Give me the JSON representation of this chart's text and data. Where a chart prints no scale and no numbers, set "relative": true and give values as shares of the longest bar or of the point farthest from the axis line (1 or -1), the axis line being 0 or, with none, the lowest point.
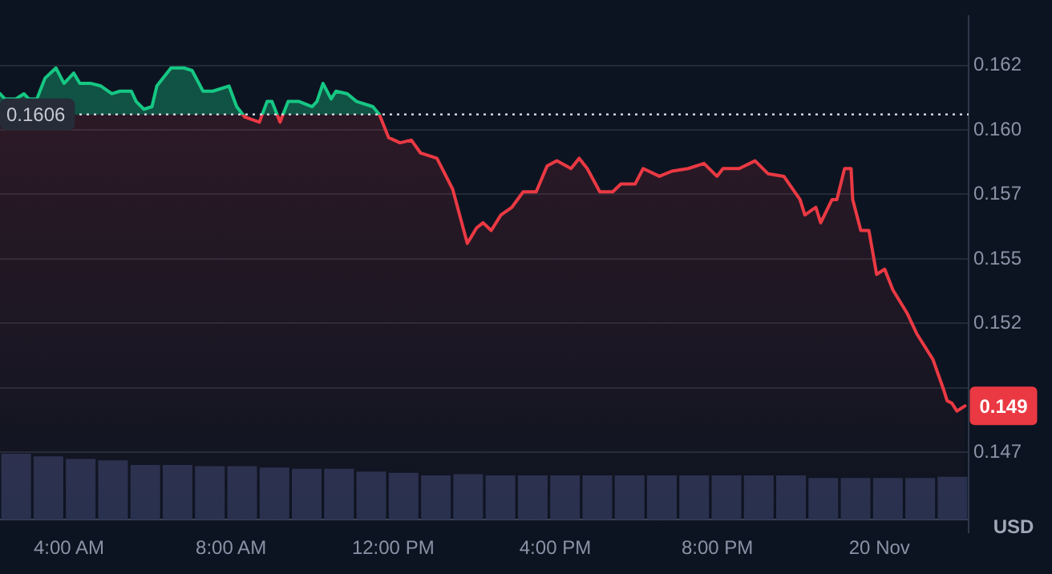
{
  "chart_data": [
    {
      "type": "area",
      "ylabel": "USD",
      "x": [
        2.3,
        2.42,
        2.69,
        2.89,
        3.01,
        3.21,
        3.41,
        3.68,
        3.88,
        4.12,
        4.27,
        4.55,
        4.79,
        5.06,
        5.26,
        5.54,
        5.66,
        5.85,
        6.05,
        6.17,
        6.52,
        6.84,
        7.04,
        7.31,
        7.55,
        7.95,
        8.14,
        8.34,
        8.7,
        8.89,
        9.01,
        9.21,
        9.41,
        9.68,
        10.0,
        10.12,
        10.27,
        10.47,
        10.59,
        10.87,
        11.1,
        11.5,
        11.66,
        11.89,
        12.17,
        12.45,
        12.68,
        13.08,
        13.47,
        13.83,
        14.06,
        14.22,
        14.42,
        14.66,
        14.93,
        15.21,
        15.53,
        15.8,
        16.04,
        16.39,
        16.59,
        16.79,
        17.1,
        17.42,
        17.62,
        17.97,
        18.17,
        18.57,
        18.88,
        19.28,
        19.67,
        19.99,
        20.14,
        20.54,
        20.93,
        21.25,
        21.64,
        22.04,
        22.16,
        22.43,
        22.55,
        22.83,
        22.95,
        23.14,
        23.3,
        23.34,
        23.54,
        23.74,
        23.93,
        24.13,
        24.33,
        24.68,
        24.92,
        25.32,
        25.59,
        25.67,
        25.79,
        25.91,
        26.11
      ],
      "series": [
        {
          "values": [
            0.1614,
            0.1612,
            0.1612,
            0.1614,
            0.1612,
            0.1612,
            0.162,
            0.1624,
            0.1618,
            0.1622,
            0.1618,
            0.1618,
            0.1617,
            0.1614,
            0.1615,
            0.1615,
            0.1611,
            0.1608,
            0.1609,
            0.1617,
            0.1624,
            0.1624,
            0.1623,
            0.1615,
            0.1615,
            0.1617,
            0.1609,
            0.1605,
            0.1603,
            0.1611,
            0.1611,
            0.1603,
            0.1611,
            0.1611,
            0.1609,
            0.1611,
            0.1618,
            0.1612,
            0.1615,
            0.1614,
            0.1611,
            0.1609,
            0.1606,
            0.1597,
            0.1595,
            0.1596,
            0.1591,
            0.1589,
            0.1577,
            0.1556,
            0.1562,
            0.1564,
            0.1561,
            0.1567,
            0.157,
            0.1576,
            0.1576,
            0.1586,
            0.1588,
            0.1585,
            0.1589,
            0.1585,
            0.1576,
            0.1576,
            0.1579,
            0.1579,
            0.1585,
            0.1582,
            0.1584,
            0.1585,
            0.1587,
            0.1582,
            0.1585,
            0.1585,
            0.1588,
            0.1583,
            0.1582,
            0.1573,
            0.1567,
            0.157,
            0.1564,
            0.1573,
            0.1573,
            0.1585,
            0.1585,
            0.1573,
            0.1561,
            0.1561,
            0.1544,
            0.1546,
            0.1538,
            0.1529,
            0.1521,
            0.1511,
            0.1499,
            0.1495,
            0.1494,
            0.1491,
            0.1493
          ],
          "colors": [
            "#16c784",
            "#16c784",
            "#16c784",
            "#16c784",
            "#16c784",
            "#16c784",
            "#16c784",
            "#16c784",
            "#16c784",
            "#16c784",
            "#16c784",
            "#16c784",
            "#16c784",
            "#16c784",
            "#16c784",
            "#16c784",
            "#16c784",
            "#16c784",
            "#16c784",
            "#16c784",
            "#16c784",
            "#16c784",
            "#16c784",
            "#16c784",
            "#16c784",
            "#16c784",
            "#16c784",
            "#ea3943",
            "#ea3943",
            "#16c784",
            "#16c784",
            "#ea3943",
            "#16c784",
            "#16c784",
            "#16c784",
            "#16c784",
            "#16c784",
            "#16c784",
            "#16c784",
            "#16c784",
            "#16c784",
            "#16c784",
            "#16c784",
            "#ea3943",
            "#ea3943",
            "#ea3943",
            "#ea3943",
            "#ea3943",
            "#ea3943",
            "#ea3943",
            "#ea3943",
            "#ea3943",
            "#ea3943",
            "#ea3943",
            "#ea3943",
            "#ea3943",
            "#ea3943",
            "#ea3943",
            "#ea3943",
            "#ea3943",
            "#ea3943",
            "#ea3943",
            "#ea3943",
            "#ea3943",
            "#ea3943",
            "#ea3943",
            "#ea3943",
            "#ea3943",
            "#ea3943",
            "#ea3943",
            "#ea3943",
            "#ea3943",
            "#ea3943",
            "#ea3943",
            "#ea3943",
            "#ea3943",
            "#ea3943",
            "#ea3943",
            "#ea3943",
            "#ea3943",
            "#ea3943",
            "#ea3943",
            "#ea3943",
            "#ea3943",
            "#ea3943",
            "#ea3943",
            "#ea3943",
            "#ea3943",
            "#ea3943",
            "#ea3943",
            "#ea3943",
            "#ea3943",
            "#ea3943",
            "#ea3943",
            "#ea3943",
            "#ea3943",
            "#ea3943",
            "#ea3943",
            "#ea3943"
          ]
        }
      ],
      "xlim": [
        2.3,
        26.2
      ],
      "ylim": [
        0.1444,
        0.1644
      ],
      "xticks": [
        {
          "value": 4,
          "label": "4:00 AM"
        },
        {
          "value": 8,
          "label": "8:00 AM"
        },
        {
          "value": 12,
          "label": "12:00 PM"
        },
        {
          "value": 16,
          "label": "4:00 PM"
        },
        {
          "value": 20,
          "label": "8:00 PM"
        },
        {
          "value": 24,
          "label": "20 Nov"
        }
      ],
      "yticks": [
        {
          "value": 0.1475,
          "label": "0.147"
        },
        {
          "value": 0.15,
          "label": null
        },
        {
          "value": 0.1525,
          "label": "0.152"
        },
        {
          "value": 0.155,
          "label": "0.155"
        },
        {
          "value": 0.1575,
          "label": "0.157"
        },
        {
          "value": 0.16,
          "label": "0.160"
        },
        {
          "value": 0.1625,
          "label": "0.162"
        }
      ],
      "grid": "y",
      "ref_lines": [
        {
          "axis": "y",
          "value": 0.1606,
          "label": "0.1606",
          "color": "#d0d4dc",
          "line_style": "dotted"
        }
      ],
      "annotations": [
        {
          "text": "0.149",
          "x": 26.11,
          "y": 0.1493
        }
      ]
    },
    {
      "type": "bar",
      "relative": true,
      "categories": [
        null,
        null,
        null,
        null,
        null,
        null,
        null,
        null,
        null,
        null,
        null,
        null,
        null,
        null,
        null,
        null,
        null,
        null,
        null,
        null,
        null,
        null,
        null,
        null,
        null,
        null,
        null,
        null,
        null,
        null
      ],
      "values": [
        1,
        0.96,
        0.92,
        0.9,
        0.83,
        0.83,
        0.81,
        0.81,
        0.79,
        0.77,
        0.77,
        0.73,
        0.71,
        0.67,
        0.69,
        0.67,
        0.67,
        0.67,
        0.67,
        0.67,
        0.67,
        0.67,
        0.67,
        0.67,
        0.67,
        0.63,
        0.63,
        0.63,
        0.63,
        0.65
      ],
      "color": "#28314f"
    }
  ]
}
